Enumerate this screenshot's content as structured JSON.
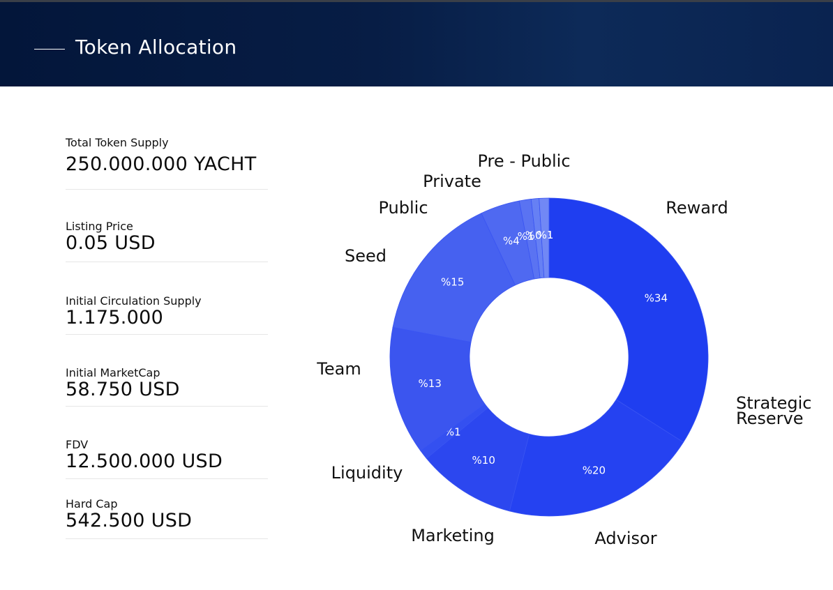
{
  "header": {
    "title": "Token Allocation"
  },
  "stats": [
    {
      "label": "Total Token Supply",
      "value": "250.000.000 YACHT"
    },
    {
      "label": "Listing Price",
      "value": "0.05 USD"
    },
    {
      "label": "Initial Circulation Supply",
      "value": "1.175.000"
    },
    {
      "label": "Initial MarketCap",
      "value": "58.750 USD"
    },
    {
      "label": "FDV",
      "value": "12.500.000 USD"
    },
    {
      "label": "Hard Cap",
      "value": "542.500 USD"
    }
  ],
  "chart_data": {
    "type": "pie",
    "variant": "donut",
    "categories": [
      "Reward",
      "Strategic Reserve",
      "Advisor",
      "Marketing",
      "Liquidity",
      "Team",
      "Seed",
      "Public",
      "Private",
      "Pre - Public"
    ],
    "values": [
      34,
      20,
      10,
      1,
      13,
      15,
      4,
      1.2,
      0.8,
      1
    ],
    "value_labels": [
      "%34",
      "%20",
      "%10",
      "%1",
      "%13",
      "%15",
      "%4",
      "%1.2",
      "%0,8",
      "%1"
    ],
    "colors": [
      "#1f3ef0",
      "#2542f1",
      "#2c47ef",
      "#3450f0",
      "#3b55ef",
      "#4661f0",
      "#4f69f1",
      "#5a73f2",
      "#6680f4",
      "#7188f5"
    ],
    "legend": "labels beside slices"
  }
}
